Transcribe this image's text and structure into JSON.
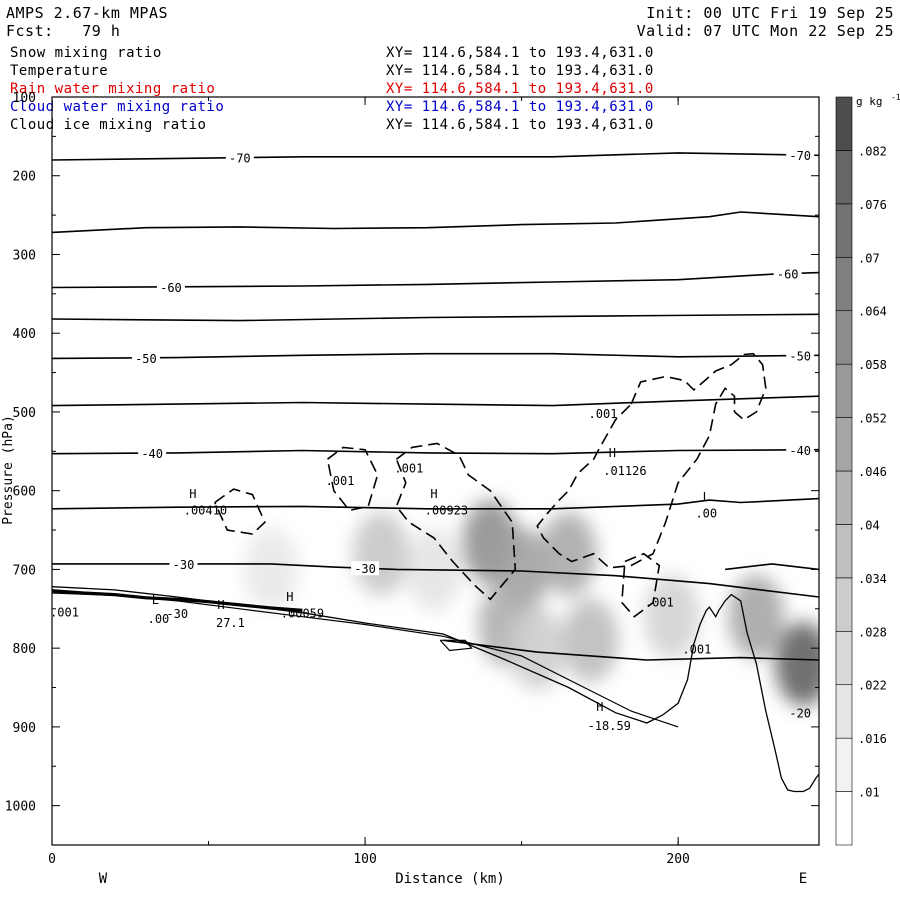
{
  "header": {
    "model": "AMPS 2.67-km MPAS",
    "forecast": "Fcst:   79 h",
    "init": "Init: 00 UTC Fri 19 Sep 25",
    "valid": "Valid: 07 UTC Mon 22 Sep 25"
  },
  "legend": [
    {
      "name": "Snow mixing ratio",
      "xy": "XY= 114.6,584.1 to 193.4,631.0",
      "color": "#000000"
    },
    {
      "name": "Temperature",
      "xy": "XY= 114.6,584.1 to 193.4,631.0",
      "color": "#000000"
    },
    {
      "name": "Rain water mixing ratio",
      "xy": "XY= 114.6,584.1 to 193.4,631.0",
      "color": "#e00000"
    },
    {
      "name": "Cloud water mixing ratio",
      "xy": "XY= 114.6,584.1 to 193.4,631.0",
      "color": "#0000cc"
    },
    {
      "name": "Cloud ice mixing ratio",
      "xy": "XY= 114.6,584.1 to 193.4,631.0",
      "color": "#000000"
    }
  ],
  "chart_data": {
    "type": "heatmap",
    "xlabel": "Distance (km)",
    "ylabel": "Pressure (hPa)",
    "xlim": [
      0,
      245
    ],
    "ylim": [
      1050,
      100
    ],
    "x_ticks": [
      0,
      100,
      200
    ],
    "y_ticks": [
      100,
      200,
      300,
      400,
      500,
      600,
      700,
      800,
      900,
      1000
    ],
    "end_labels": {
      "left": "W",
      "right": "E"
    },
    "colorbar": {
      "unit": "g kg",
      "unit_sup": "-1",
      "ticks": [
        ".01",
        ".016",
        ".022",
        ".028",
        ".034",
        ".04",
        ".046",
        ".052",
        ".058",
        ".064",
        ".07",
        ".076",
        ".082"
      ],
      "colors": [
        "#ffffff",
        "#f2f2f2",
        "#e6e6e6",
        "#d9d9d9",
        "#cccccc",
        "#bfbfbf",
        "#b3b3b3",
        "#a6a6a6",
        "#999999",
        "#8c8c8c",
        "#808080",
        "#737373",
        "#666666",
        "#4d4d4d"
      ]
    },
    "snow_shading": [
      {
        "x": 140,
        "p": 665,
        "v": 0.05
      },
      {
        "x": 150,
        "p": 700,
        "v": 0.042
      },
      {
        "x": 165,
        "p": 680,
        "v": 0.038
      },
      {
        "x": 172,
        "p": 790,
        "v": 0.03
      },
      {
        "x": 145,
        "p": 770,
        "v": 0.036
      },
      {
        "x": 155,
        "p": 800,
        "v": 0.022
      },
      {
        "x": 105,
        "p": 680,
        "v": 0.025
      },
      {
        "x": 122,
        "p": 700,
        "v": 0.012
      },
      {
        "x": 198,
        "p": 760,
        "v": 0.02
      },
      {
        "x": 240,
        "p": 820,
        "v": 0.07
      },
      {
        "x": 225,
        "p": 760,
        "v": 0.04
      },
      {
        "x": 70,
        "p": 700,
        "v": 0.01
      }
    ],
    "temperature_contours": [
      {
        "label": "-70",
        "x": [
          0,
          40,
          80,
          120,
          160,
          200,
          245
        ],
        "p": [
          180,
          178,
          176,
          176,
          176,
          171,
          174
        ],
        "labels": [
          {
            "t": "-70",
            "x": 60
          },
          {
            "t": "-70",
            "x": 239
          }
        ]
      },
      {
        "label": "",
        "x": [
          0,
          30,
          60,
          90,
          120,
          150,
          180,
          210,
          220,
          245
        ],
        "p": [
          272,
          266,
          265,
          267,
          266,
          262,
          260,
          252,
          246,
          252
        ]
      },
      {
        "label": "-60",
        "x": [
          0,
          40,
          80,
          120,
          160,
          200,
          230,
          245
        ],
        "p": [
          342,
          341,
          340,
          338,
          335,
          332,
          325,
          323
        ],
        "labels": [
          {
            "t": "-60",
            "x": 38
          },
          {
            "t": "-60",
            "x": 235
          }
        ]
      },
      {
        "label": "",
        "x": [
          0,
          60,
          120,
          180,
          245
        ],
        "p": [
          382,
          384,
          380,
          378,
          376
        ]
      },
      {
        "label": "-50",
        "x": [
          0,
          40,
          80,
          120,
          160,
          200,
          245
        ],
        "p": [
          432,
          431,
          428,
          426,
          426,
          430,
          428
        ],
        "labels": [
          {
            "t": "-50",
            "x": 30
          },
          {
            "t": "-50",
            "x": 239
          }
        ]
      },
      {
        "label": "",
        "x": [
          0,
          40,
          80,
          120,
          160,
          200,
          245
        ],
        "p": [
          492,
          490,
          488,
          490,
          492,
          486,
          480
        ]
      },
      {
        "label": "-40",
        "x": [
          0,
          40,
          80,
          120,
          160,
          200,
          245
        ],
        "p": [
          553,
          552,
          549,
          552,
          553,
          549,
          548
        ],
        "labels": [
          {
            "t": "-40",
            "x": 32
          },
          {
            "t": "-40",
            "x": 239
          }
        ]
      },
      {
        "label": "",
        "x": [
          0,
          40,
          80,
          120,
          160,
          200,
          210,
          220,
          245
        ],
        "p": [
          623,
          621,
          620,
          623,
          623,
          617,
          612,
          615,
          610
        ]
      },
      {
        "label": "-30",
        "x": [
          0,
          40,
          70,
          90,
          110,
          150,
          180,
          210,
          245
        ],
        "p": [
          693,
          693,
          693,
          697,
          700,
          702,
          708,
          718,
          735
        ],
        "labels": [
          {
            "t": "-30",
            "x": 42
          },
          {
            "t": "-30",
            "x": 100
          }
        ]
      },
      {
        "label": "",
        "x": [
          125,
          155,
          190,
          220,
          245
        ],
        "p": [
          790,
          805,
          815,
          812,
          815
        ]
      },
      {
        "label": "",
        "x": [
          215,
          230,
          245
        ],
        "p": [
          700,
          693,
          700
        ]
      }
    ],
    "cloud_ice_contours": [
      {
        "x": [
          88,
          93,
          100,
          104,
          101,
          95,
          90,
          88
        ],
        "p": [
          560,
          545,
          548,
          580,
          620,
          625,
          600,
          560
        ]
      },
      {
        "x": [
          110,
          115,
          123,
          130,
          133,
          140,
          147,
          148,
          140,
          135,
          128,
          122,
          114,
          110,
          113,
          110
        ],
        "p": [
          560,
          545,
          540,
          555,
          580,
          600,
          640,
          700,
          738,
          720,
          690,
          660,
          640,
          620,
          590,
          560
        ]
      },
      {
        "x": [
          52,
          58,
          64,
          68,
          64,
          56,
          52
        ],
        "p": [
          615,
          598,
          605,
          640,
          655,
          650,
          615
        ]
      },
      {
        "x": [
          185,
          188,
          196,
          202,
          205,
          208,
          212,
          217,
          221,
          224,
          227,
          228,
          225,
          221,
          218,
          218,
          215,
          212,
          210,
          206,
          200,
          196,
          192,
          185,
          178,
          173,
          166,
          162,
          157,
          155,
          158,
          162,
          165,
          168,
          173,
          175,
          180,
          185
        ],
        "p": [
          490,
          462,
          455,
          460,
          472,
          462,
          448,
          440,
          427,
          426,
          440,
          470,
          500,
          510,
          500,
          480,
          470,
          490,
          530,
          560,
          590,
          640,
          680,
          695,
          698,
          680,
          690,
          680,
          660,
          645,
          630,
          612,
          600,
          578,
          560,
          545,
          510,
          490
        ]
      },
      {
        "x": [
          183,
          189,
          194,
          192,
          186,
          182,
          183
        ],
        "p": [
          690,
          680,
          695,
          742,
          760,
          742,
          690
        ]
      }
    ],
    "temperature_lows_left": [
      {
        "x": [
          0,
          20,
          40,
          60,
          80,
          100,
          125,
          150,
          170,
          185,
          200
        ],
        "p": [
          730,
          733,
          740,
          750,
          760,
          770,
          785,
          810,
          850,
          880,
          900
        ]
      }
    ],
    "terrain": {
      "x": [
        0,
        20,
        40,
        60,
        80,
        100,
        125,
        145,
        165,
        180,
        190,
        195,
        200,
        203,
        205,
        207,
        209,
        210,
        212,
        213,
        215,
        217,
        220,
        222,
        225,
        228,
        231,
        233,
        235,
        237,
        240,
        242,
        244,
        245
      ],
      "p": [
        722,
        726,
        735,
        745,
        755,
        768,
        782,
        815,
        850,
        882,
        895,
        885,
        870,
        840,
        795,
        770,
        752,
        748,
        760,
        752,
        740,
        732,
        740,
        780,
        820,
        880,
        930,
        965,
        980,
        982,
        982,
        978,
        965,
        960
      ]
    },
    "point_labels": [
      {
        "t": "H",
        "x": 45,
        "p": 609
      },
      {
        "t": ".00410",
        "x": 49,
        "p": 630
      },
      {
        "t": "H",
        "x": 122,
        "p": 609
      },
      {
        "t": ".00923",
        "x": 126,
        "p": 630
      },
      {
        "t": "H",
        "x": 179,
        "p": 557
      },
      {
        "t": ".01126",
        "x": 183,
        "p": 580
      },
      {
        "t": "L",
        "x": 209,
        "p": 613
      },
      {
        "t": ".00",
        "x": 209,
        "p": 634
      },
      {
        "t": ".001",
        "x": 92,
        "p": 593
      },
      {
        "t": ".001",
        "x": 114,
        "p": 577
      },
      {
        "t": ".001",
        "x": 176,
        "p": 508
      },
      {
        "t": ".001",
        "x": 194,
        "p": 747
      },
      {
        "t": ".001",
        "x": 206,
        "p": 807
      },
      {
        "t": "L",
        "x": 33,
        "p": 744
      },
      {
        "t": ".00",
        "x": 34,
        "p": 768
      },
      {
        "t": "-30",
        "x": 40,
        "p": 762
      },
      {
        "t": "H",
        "x": 54,
        "p": 750
      },
      {
        "t": "27.1",
        "x": 57,
        "p": 773
      },
      {
        "t": "H",
        "x": 76,
        "p": 740
      },
      {
        "t": ".00059",
        "x": 80,
        "p": 761
      },
      {
        "t": ".001",
        "x": 4,
        "p": 760
      },
      {
        "t": "H",
        "x": 175,
        "p": 880
      },
      {
        "t": "-18.59",
        "x": 178,
        "p": 904
      },
      {
        "t": "-20",
        "x": 239,
        "p": 888
      }
    ]
  }
}
